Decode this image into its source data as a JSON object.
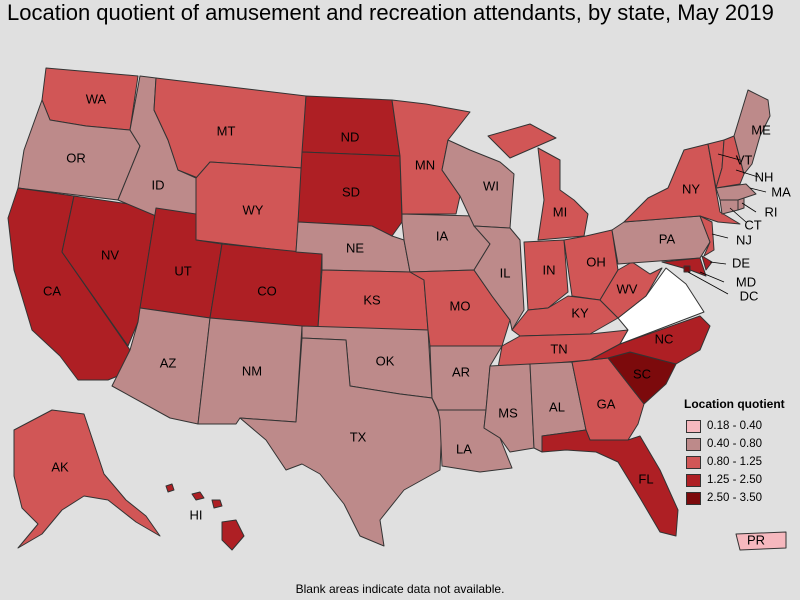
{
  "title": "Location quotient of amusement and recreation attendants, by state, May 2019",
  "footnote": "Blank areas indicate data not available.",
  "colors": {
    "background": "#e0e0e0",
    "c1": "#f6b8be",
    "c2": "#bd8a8a",
    "c3": "#d15656",
    "c4": "#ae1f24",
    "c5": "#7c0a0c",
    "na": "#ffffff",
    "border": "#333333"
  },
  "legend": {
    "title": "Location quotient",
    "items": [
      {
        "label": "0.18 - 0.40",
        "color": "#f6b8be"
      },
      {
        "label": "0.40 - 0.80",
        "color": "#bd8a8a"
      },
      {
        "label": "0.80 - 1.25",
        "color": "#d15656"
      },
      {
        "label": "1.25 - 2.50",
        "color": "#ae1f24"
      },
      {
        "label": "2.50 - 3.50",
        "color": "#7c0a0c"
      }
    ]
  },
  "states": [
    {
      "abbr": "WA",
      "category": "0.80 - 1.25"
    },
    {
      "abbr": "OR",
      "category": "0.40 - 0.80"
    },
    {
      "abbr": "CA",
      "category": "1.25 - 2.50"
    },
    {
      "abbr": "NV",
      "category": "1.25 - 2.50"
    },
    {
      "abbr": "ID",
      "category": "0.40 - 0.80"
    },
    {
      "abbr": "MT",
      "category": "0.80 - 1.25"
    },
    {
      "abbr": "WY",
      "category": "0.80 - 1.25"
    },
    {
      "abbr": "UT",
      "category": "1.25 - 2.50"
    },
    {
      "abbr": "AZ",
      "category": "0.40 - 0.80"
    },
    {
      "abbr": "CO",
      "category": "1.25 - 2.50"
    },
    {
      "abbr": "NM",
      "category": "0.40 - 0.80"
    },
    {
      "abbr": "ND",
      "category": "1.25 - 2.50"
    },
    {
      "abbr": "SD",
      "category": "1.25 - 2.50"
    },
    {
      "abbr": "NE",
      "category": "0.40 - 0.80"
    },
    {
      "abbr": "KS",
      "category": "0.80 - 1.25"
    },
    {
      "abbr": "OK",
      "category": "0.40 - 0.80"
    },
    {
      "abbr": "TX",
      "category": "0.40 - 0.80"
    },
    {
      "abbr": "MN",
      "category": "0.80 - 1.25"
    },
    {
      "abbr": "IA",
      "category": "0.40 - 0.80"
    },
    {
      "abbr": "MO",
      "category": "0.80 - 1.25"
    },
    {
      "abbr": "AR",
      "category": "0.40 - 0.80"
    },
    {
      "abbr": "LA",
      "category": "0.40 - 0.80"
    },
    {
      "abbr": "WI",
      "category": "0.40 - 0.80"
    },
    {
      "abbr": "IL",
      "category": "0.40 - 0.80"
    },
    {
      "abbr": "MI",
      "category": "0.80 - 1.25"
    },
    {
      "abbr": "IN",
      "category": "0.80 - 1.25"
    },
    {
      "abbr": "OH",
      "category": "0.80 - 1.25"
    },
    {
      "abbr": "KY",
      "category": "0.80 - 1.25"
    },
    {
      "abbr": "TN",
      "category": "0.80 - 1.25"
    },
    {
      "abbr": "MS",
      "category": "0.40 - 0.80"
    },
    {
      "abbr": "AL",
      "category": "0.40 - 0.80"
    },
    {
      "abbr": "GA",
      "category": "0.80 - 1.25"
    },
    {
      "abbr": "FL",
      "category": "1.25 - 2.50"
    },
    {
      "abbr": "SC",
      "category": "2.50 - 3.50"
    },
    {
      "abbr": "NC",
      "category": "1.25 - 2.50"
    },
    {
      "abbr": "VA",
      "category": "n/a"
    },
    {
      "abbr": "WV",
      "category": "0.80 - 1.25"
    },
    {
      "abbr": "PA",
      "category": "0.40 - 0.80"
    },
    {
      "abbr": "NY",
      "category": "0.80 - 1.25"
    },
    {
      "abbr": "NJ",
      "category": "0.80 - 1.25"
    },
    {
      "abbr": "DE",
      "category": "1.25 - 2.50"
    },
    {
      "abbr": "MD",
      "category": "1.25 - 2.50"
    },
    {
      "abbr": "DC",
      "category": "2.50 - 3.50"
    },
    {
      "abbr": "CT",
      "category": "0.40 - 0.80"
    },
    {
      "abbr": "RI",
      "category": "0.40 - 0.80"
    },
    {
      "abbr": "MA",
      "category": "0.40 - 0.80"
    },
    {
      "abbr": "VT",
      "category": "0.80 - 1.25"
    },
    {
      "abbr": "NH",
      "category": "0.80 - 1.25"
    },
    {
      "abbr": "ME",
      "category": "0.40 - 0.80"
    },
    {
      "abbr": "AK",
      "category": "0.80 - 1.25"
    },
    {
      "abbr": "HI",
      "category": "1.25 - 2.50"
    },
    {
      "abbr": "PR",
      "category": "0.18 - 0.40"
    }
  ]
}
